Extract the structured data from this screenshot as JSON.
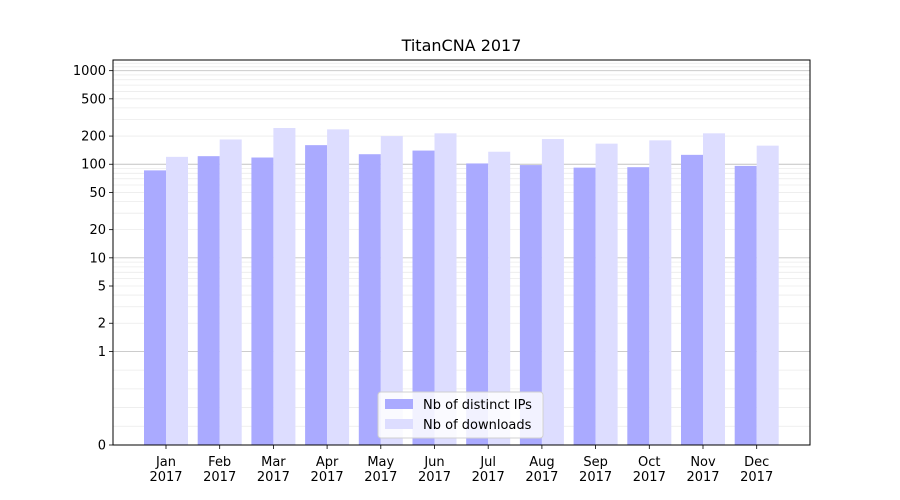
{
  "chart_data": {
    "type": "bar",
    "title": "TitanCNA 2017",
    "xlabel": "",
    "ylabel": "",
    "y_scale": "symlog",
    "y_major_ticks": [
      0,
      1,
      2,
      5,
      10,
      20,
      50,
      100,
      200,
      500,
      1000
    ],
    "y_major_tick_labels": [
      "0",
      "1",
      "2",
      "5",
      "10",
      "20",
      "50",
      "100",
      "200",
      "500",
      "1000"
    ],
    "ylim": [
      0,
      1300
    ],
    "grid": true,
    "legend_position": "bottom-center",
    "categories": [
      "Jan\n2017",
      "Feb\n2017",
      "Mar\n2017",
      "Apr\n2017",
      "May\n2017",
      "Jun\n2017",
      "Jul\n2017",
      "Aug\n2017",
      "Sep\n2017",
      "Oct\n2017",
      "Nov\n2017",
      "Dec\n2017"
    ],
    "category_lines": [
      [
        "Jan",
        "2017"
      ],
      [
        "Feb",
        "2017"
      ],
      [
        "Mar",
        "2017"
      ],
      [
        "Apr",
        "2017"
      ],
      [
        "May",
        "2017"
      ],
      [
        "Jun",
        "2017"
      ],
      [
        "Jul",
        "2017"
      ],
      [
        "Aug",
        "2017"
      ],
      [
        "Sep",
        "2017"
      ],
      [
        "Oct",
        "2017"
      ],
      [
        "Nov",
        "2017"
      ],
      [
        "Dec",
        "2017"
      ]
    ],
    "series": [
      {
        "name": "Nb of distinct IPs",
        "color": "#aaaaff",
        "values": [
          86,
          122,
          118,
          160,
          128,
          140,
          102,
          98,
          92,
          93,
          126,
          96
        ]
      },
      {
        "name": "Nb of downloads",
        "color": "#ddddff",
        "values": [
          120,
          184,
          244,
          236,
          200,
          214,
          136,
          186,
          166,
          180,
          214,
          158
        ]
      }
    ]
  }
}
